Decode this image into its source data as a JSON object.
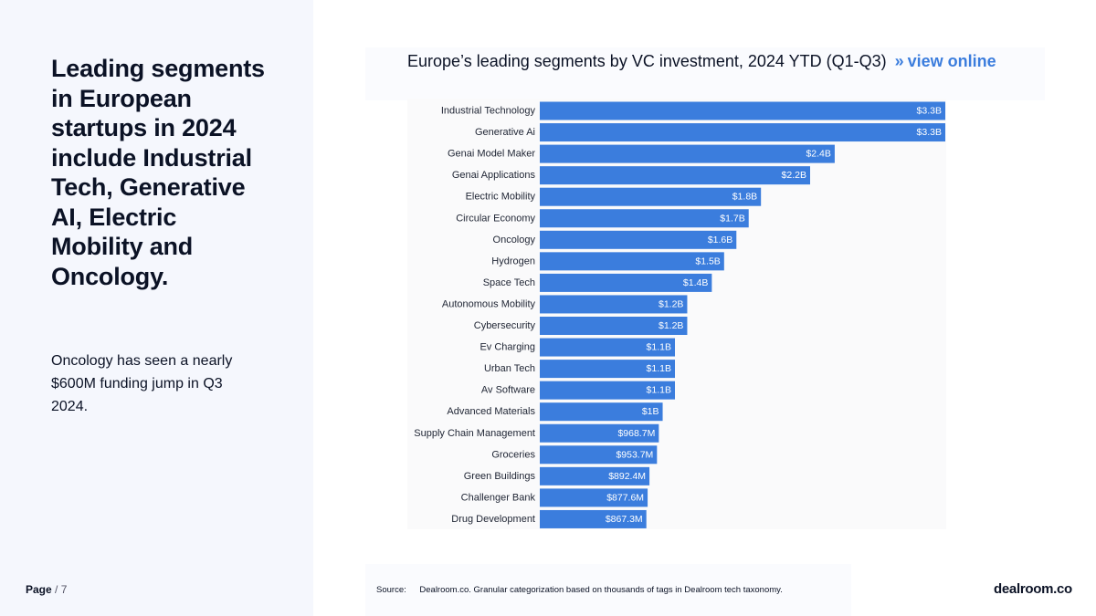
{
  "headline": "Leading segments in European startups in 2024 include Industrial Tech, Generative AI, Electric Mobility and Oncology.",
  "subtext": "Oncology has seen a nearly $600M funding jump in Q3 2024.",
  "page": {
    "label": "Page",
    "number": "7"
  },
  "chart_title": "Europe’s leading segments by VC investment, 2024 YTD (Q1-Q3)",
  "view_online": {
    "arrows": "»",
    "label": "view online"
  },
  "source": {
    "label": "Source:",
    "text": "Dealroom.co. Granular categorization based on thousands of tags in Dealroom tech taxonomy."
  },
  "logo": "dealroom.co",
  "colors": {
    "bar": "#3b7ddd",
    "accent": "#3b7ddd"
  },
  "chart_data": {
    "type": "bar",
    "orientation": "horizontal",
    "title": "Europe’s leading segments by VC investment, 2024 YTD (Q1-Q3)",
    "xlabel": "",
    "ylabel": "",
    "grid": false,
    "unit": "USD",
    "xlim": [
      0,
      3300000000
    ],
    "categories": [
      "Industrial Technology",
      "Generative Ai",
      "Genai Model Maker",
      "Genai Applications",
      "Electric Mobility",
      "Circular Economy",
      "Oncology",
      "Hydrogen",
      "Space Tech",
      "Autonomous Mobility",
      "Cybersecurity",
      "Ev Charging",
      "Urban Tech",
      "Av Software",
      "Advanced Materials",
      "Supply Chain Management",
      "Groceries",
      "Green Buildings",
      "Challenger Bank",
      "Drug Development"
    ],
    "values": [
      3300000000,
      3300000000,
      2400000000,
      2200000000,
      1800000000,
      1700000000,
      1600000000,
      1500000000,
      1400000000,
      1200000000,
      1200000000,
      1100000000,
      1100000000,
      1100000000,
      1000000000,
      968700000,
      953700000,
      892400000,
      877600000,
      867300000
    ],
    "value_labels": [
      "$3.3B",
      "$3.3B",
      "$2.4B",
      "$2.2B",
      "$1.8B",
      "$1.7B",
      "$1.6B",
      "$1.5B",
      "$1.4B",
      "$1.2B",
      "$1.2B",
      "$1.1B",
      "$1.1B",
      "$1.1B",
      "$1B",
      "$968.7M",
      "$953.7M",
      "$892.4M",
      "$877.6M",
      "$867.3M"
    ]
  }
}
